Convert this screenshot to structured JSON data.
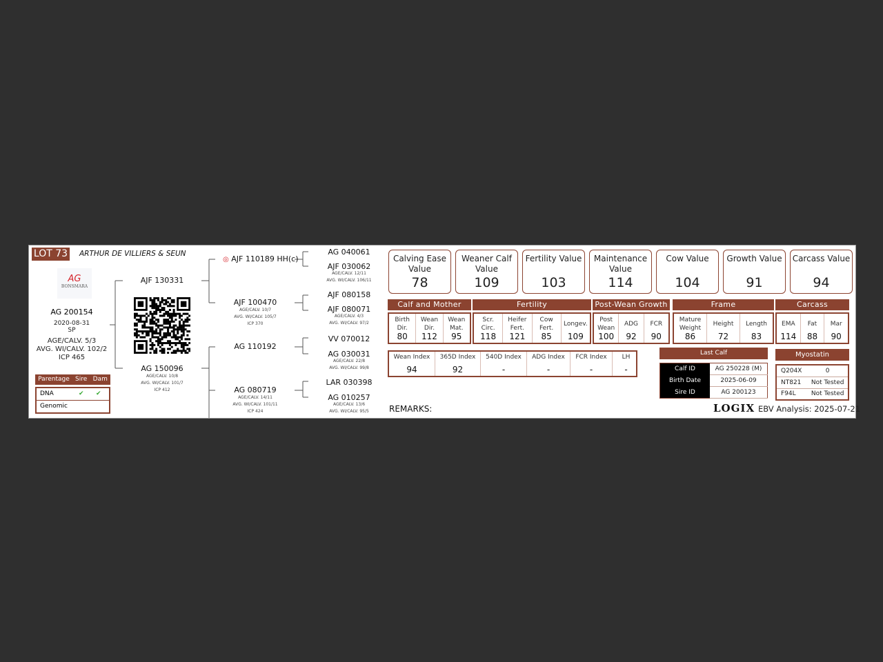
{
  "lot": "LOT 73",
  "breeder": "ARTHUR DE VILLIERS & SEUN",
  "logo": {
    "mark": "AG",
    "name": "BONSMARA"
  },
  "animal": {
    "id": "AG 200154",
    "dob": "2020-08-31",
    "status": "SP",
    "age_calv": "AGE/CALV. 5/3",
    "avg_wi": "AVG. WI/CALV. 102/2",
    "icp": "ICP 465"
  },
  "parentage": {
    "headers": [
      "Parentage",
      "Sire",
      "Dam"
    ],
    "rows": [
      {
        "label": "DNA",
        "sire": "✔",
        "dam": "✔"
      },
      {
        "label": "Genomic",
        "sire": "",
        "dam": ""
      }
    ]
  },
  "sire": {
    "id": "AJF 130331"
  },
  "dam": {
    "id": "AG 150096",
    "age_calv": "AGE/CALV. 10/8",
    "avg_wi": "AVG. WI/CALV. 101/7",
    "icp": "ICP 412"
  },
  "ss": {
    "id": "AJF 110189",
    "suffix": "HH(c)"
  },
  "sd": {
    "id": "AJF 100470",
    "age_calv": "AGE/CALV. 10/7",
    "avg_wi": "AVG. WI/CALV. 105/7",
    "icp": "ICP 370"
  },
  "ds": {
    "id": "AG 110192"
  },
  "dd": {
    "id": "AG 080719",
    "age_calv": "AGE/CALV. 14/11",
    "avg_wi": "AVG. WI/CALV. 101/11",
    "icp": "ICP 424"
  },
  "g3": [
    {
      "id": "AG 040061"
    },
    {
      "id": "AJF 030062",
      "age_calv": "AGE/CALV. 12/11",
      "avg_wi": "AVG. WI/CALV. 106/11"
    },
    {
      "id": "AJF 080158"
    },
    {
      "id": "AJF 080071",
      "age_calv": "AGE/CALV. 4/3",
      "avg_wi": "AVG. WI/CALV. 97/2"
    },
    {
      "id": "VV 070012"
    },
    {
      "id": "AG 030031",
      "age_calv": "AGE/CALV. 22/8",
      "avg_wi": "AVG. WI/CALV. 99/8"
    },
    {
      "id": "LAR 030398"
    },
    {
      "id": "AG 010257",
      "age_calv": "AGE/CALV. 13/6",
      "avg_wi": "AVG. WI/CALV. 95/5"
    }
  ],
  "values": [
    {
      "label": "Calving Ease Value",
      "value": "78"
    },
    {
      "label": "Weaner Calf Value",
      "value": "109"
    },
    {
      "label": "Fertility Value",
      "value": "103"
    },
    {
      "label": "Maintenance Value",
      "value": "114"
    },
    {
      "label": "Cow Value",
      "value": "104"
    },
    {
      "label": "Growth Value",
      "value": "91"
    },
    {
      "label": "Carcass Value",
      "value": "94"
    }
  ],
  "categories": [
    {
      "name": "Calf and Mother",
      "traits": [
        {
          "l": "Birth Dir.",
          "v": "80"
        },
        {
          "l": "Wean Dir.",
          "v": "112"
        },
        {
          "l": "Wean Mat.",
          "v": "95"
        }
      ]
    },
    {
      "name": "Fertility",
      "traits": [
        {
          "l": "Scr. Circ.",
          "v": "118"
        },
        {
          "l": "Heifer Fert.",
          "v": "121"
        },
        {
          "l": "Cow Fert.",
          "v": "85"
        },
        {
          "l": "Longev.",
          "v": "109"
        }
      ]
    },
    {
      "name": "Post-Wean Growth",
      "traits": [
        {
          "l": "Post Wean",
          "v": "100"
        },
        {
          "l": "ADG",
          "v": "92"
        },
        {
          "l": "FCR",
          "v": "90"
        }
      ]
    },
    {
      "name": "Frame",
      "traits": [
        {
          "l": "Mature Weight",
          "v": "86"
        },
        {
          "l": "Height",
          "v": "72"
        },
        {
          "l": "Length",
          "v": "83"
        }
      ]
    },
    {
      "name": "Carcass",
      "traits": [
        {
          "l": "EMA",
          "v": "114"
        },
        {
          "l": "Fat",
          "v": "88"
        },
        {
          "l": "Mar",
          "v": "90"
        }
      ]
    }
  ],
  "indexes": [
    {
      "l": "Wean Index",
      "v": "94"
    },
    {
      "l": "365D Index",
      "v": "92"
    },
    {
      "l": "540D Index",
      "v": "-"
    },
    {
      "l": "ADG Index",
      "v": "-"
    },
    {
      "l": "FCR Index",
      "v": "-"
    },
    {
      "l": "LH",
      "v": "-"
    }
  ],
  "last_calf": {
    "title": "Last Calf",
    "rows": [
      {
        "k": "Calf ID",
        "v": "AG 250228 (M)"
      },
      {
        "k": "Birth Date",
        "v": "2025-06-09"
      },
      {
        "k": "Sire ID",
        "v": "AG 200123"
      }
    ]
  },
  "myostatin": {
    "title": "Myostatin",
    "rows": [
      {
        "k": "Q204X",
        "v": "0"
      },
      {
        "k": "NT821",
        "v": "Not Tested"
      },
      {
        "k": "F94L",
        "v": "Not Tested"
      }
    ]
  },
  "remarks": "REMARKS:",
  "footer": {
    "logix": "LOGIX",
    "analysis": "EBV Analysis: 2025-07-21"
  },
  "colors": {
    "brand": "#8b4330",
    "check": "#3aaa35",
    "background": "#2f2f2f"
  }
}
